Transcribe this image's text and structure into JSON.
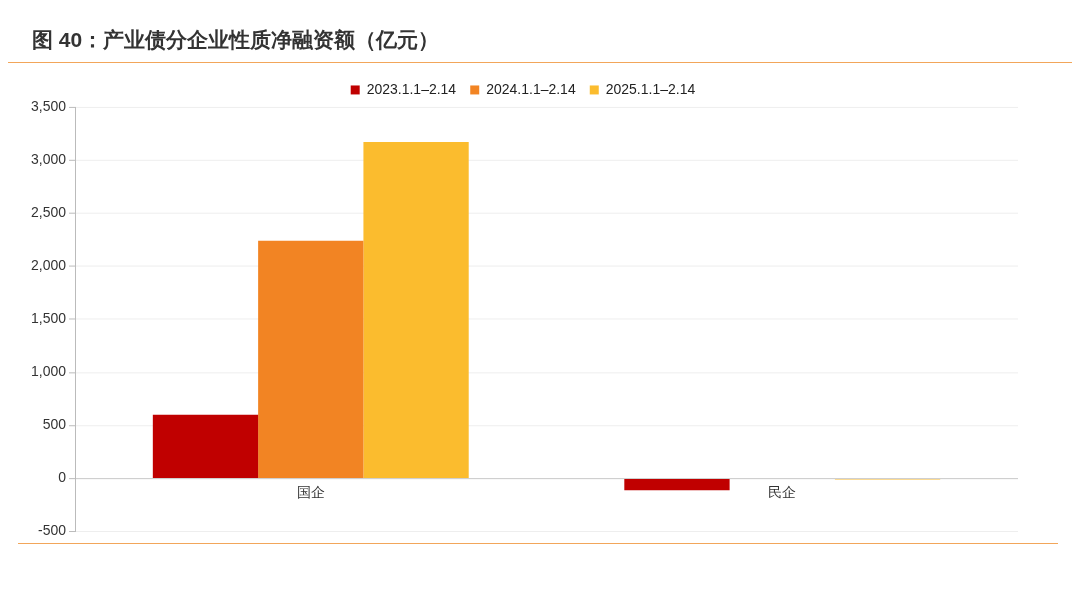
{
  "chart_data": {
    "type": "bar",
    "title": "图 40：产业债分企业性质净融资额（亿元）",
    "categories": [
      "国企",
      "民企"
    ],
    "series": [
      {
        "name": "2023.1.1–2.14",
        "color": "#c00000",
        "values": [
          600,
          -110
        ]
      },
      {
        "name": "2024.1.1–2.14",
        "color": "#f28423",
        "values": [
          2240,
          0
        ]
      },
      {
        "name": "2025.1.1–2.14",
        "color": "#fbbc2e",
        "values": [
          3170,
          -10
        ]
      }
    ],
    "ylim": [
      -500,
      3500
    ],
    "yticks": [
      -500,
      0,
      500,
      {
        "value": 1000,
        "label": "1,000"
      },
      {
        "value": 1500,
        "label": "1,500"
      },
      {
        "value": 2000,
        "label": "2,000"
      },
      {
        "value": 2500,
        "label": "2,500"
      },
      {
        "value": 3000,
        "label": "3,000"
      },
      {
        "value": 3500,
        "label": "3,500"
      }
    ],
    "grid": "y",
    "legend": "top"
  }
}
